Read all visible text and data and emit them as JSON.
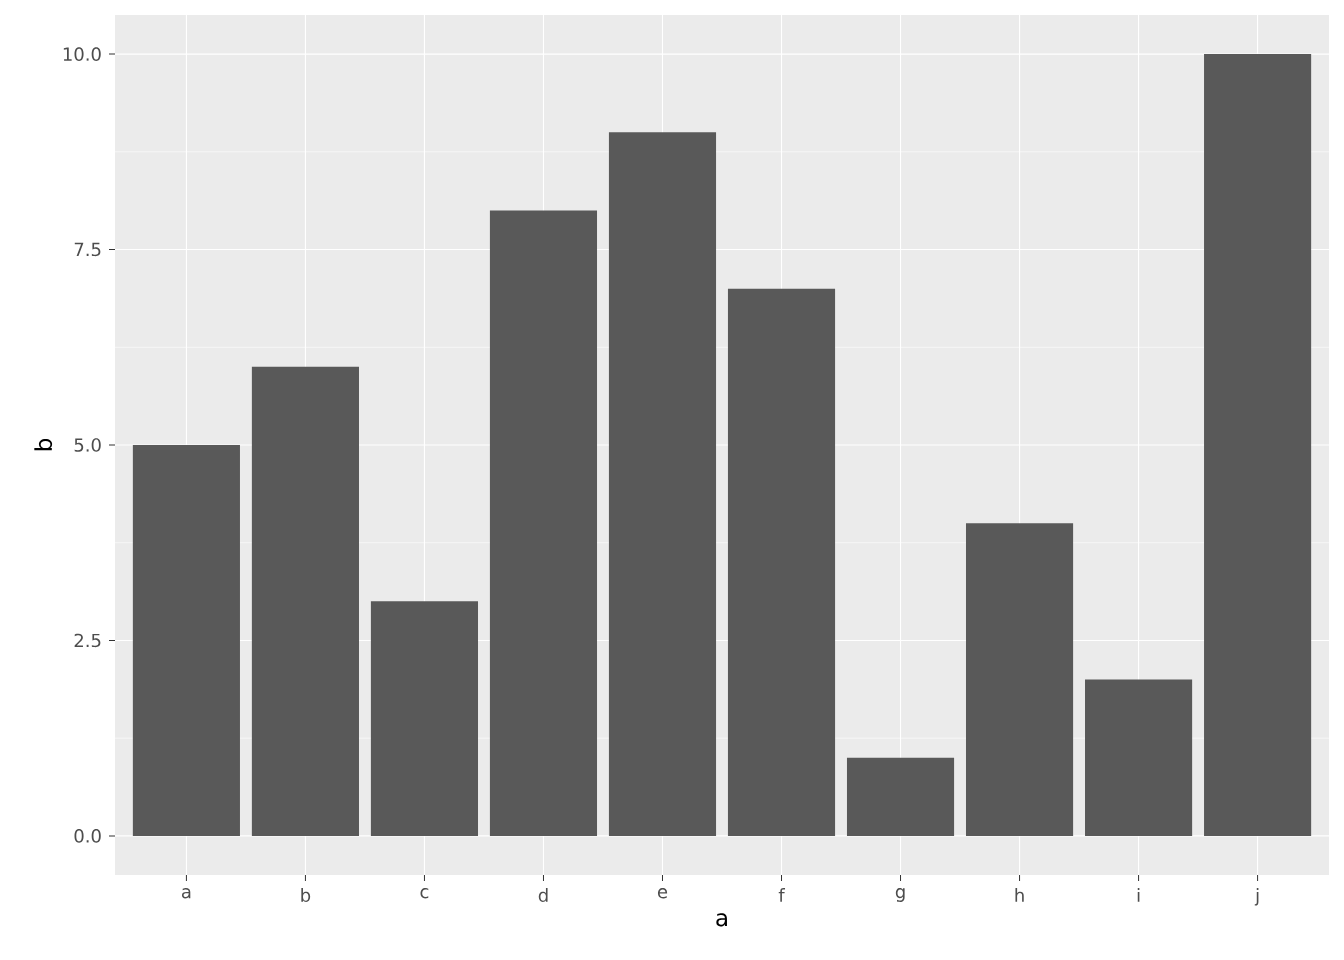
{
  "chart_data": {
    "type": "bar",
    "xlabel": "a",
    "ylabel": "b",
    "categories": [
      "a",
      "b",
      "c",
      "d",
      "e",
      "f",
      "g",
      "h",
      "i",
      "j"
    ],
    "values": [
      5,
      6,
      3,
      8,
      9,
      7,
      1,
      4,
      2,
      10
    ],
    "color": "#595959",
    "ylim": [
      -0.5,
      10.5
    ],
    "yticks": [
      {
        "value": 0,
        "label": "0.0"
      },
      {
        "value": 2.5,
        "label": "2.5"
      },
      {
        "value": 5,
        "label": "5.0"
      },
      {
        "value": 7.5,
        "label": "7.5"
      },
      {
        "value": 10,
        "label": "10.0"
      }
    ],
    "grid": true
  }
}
